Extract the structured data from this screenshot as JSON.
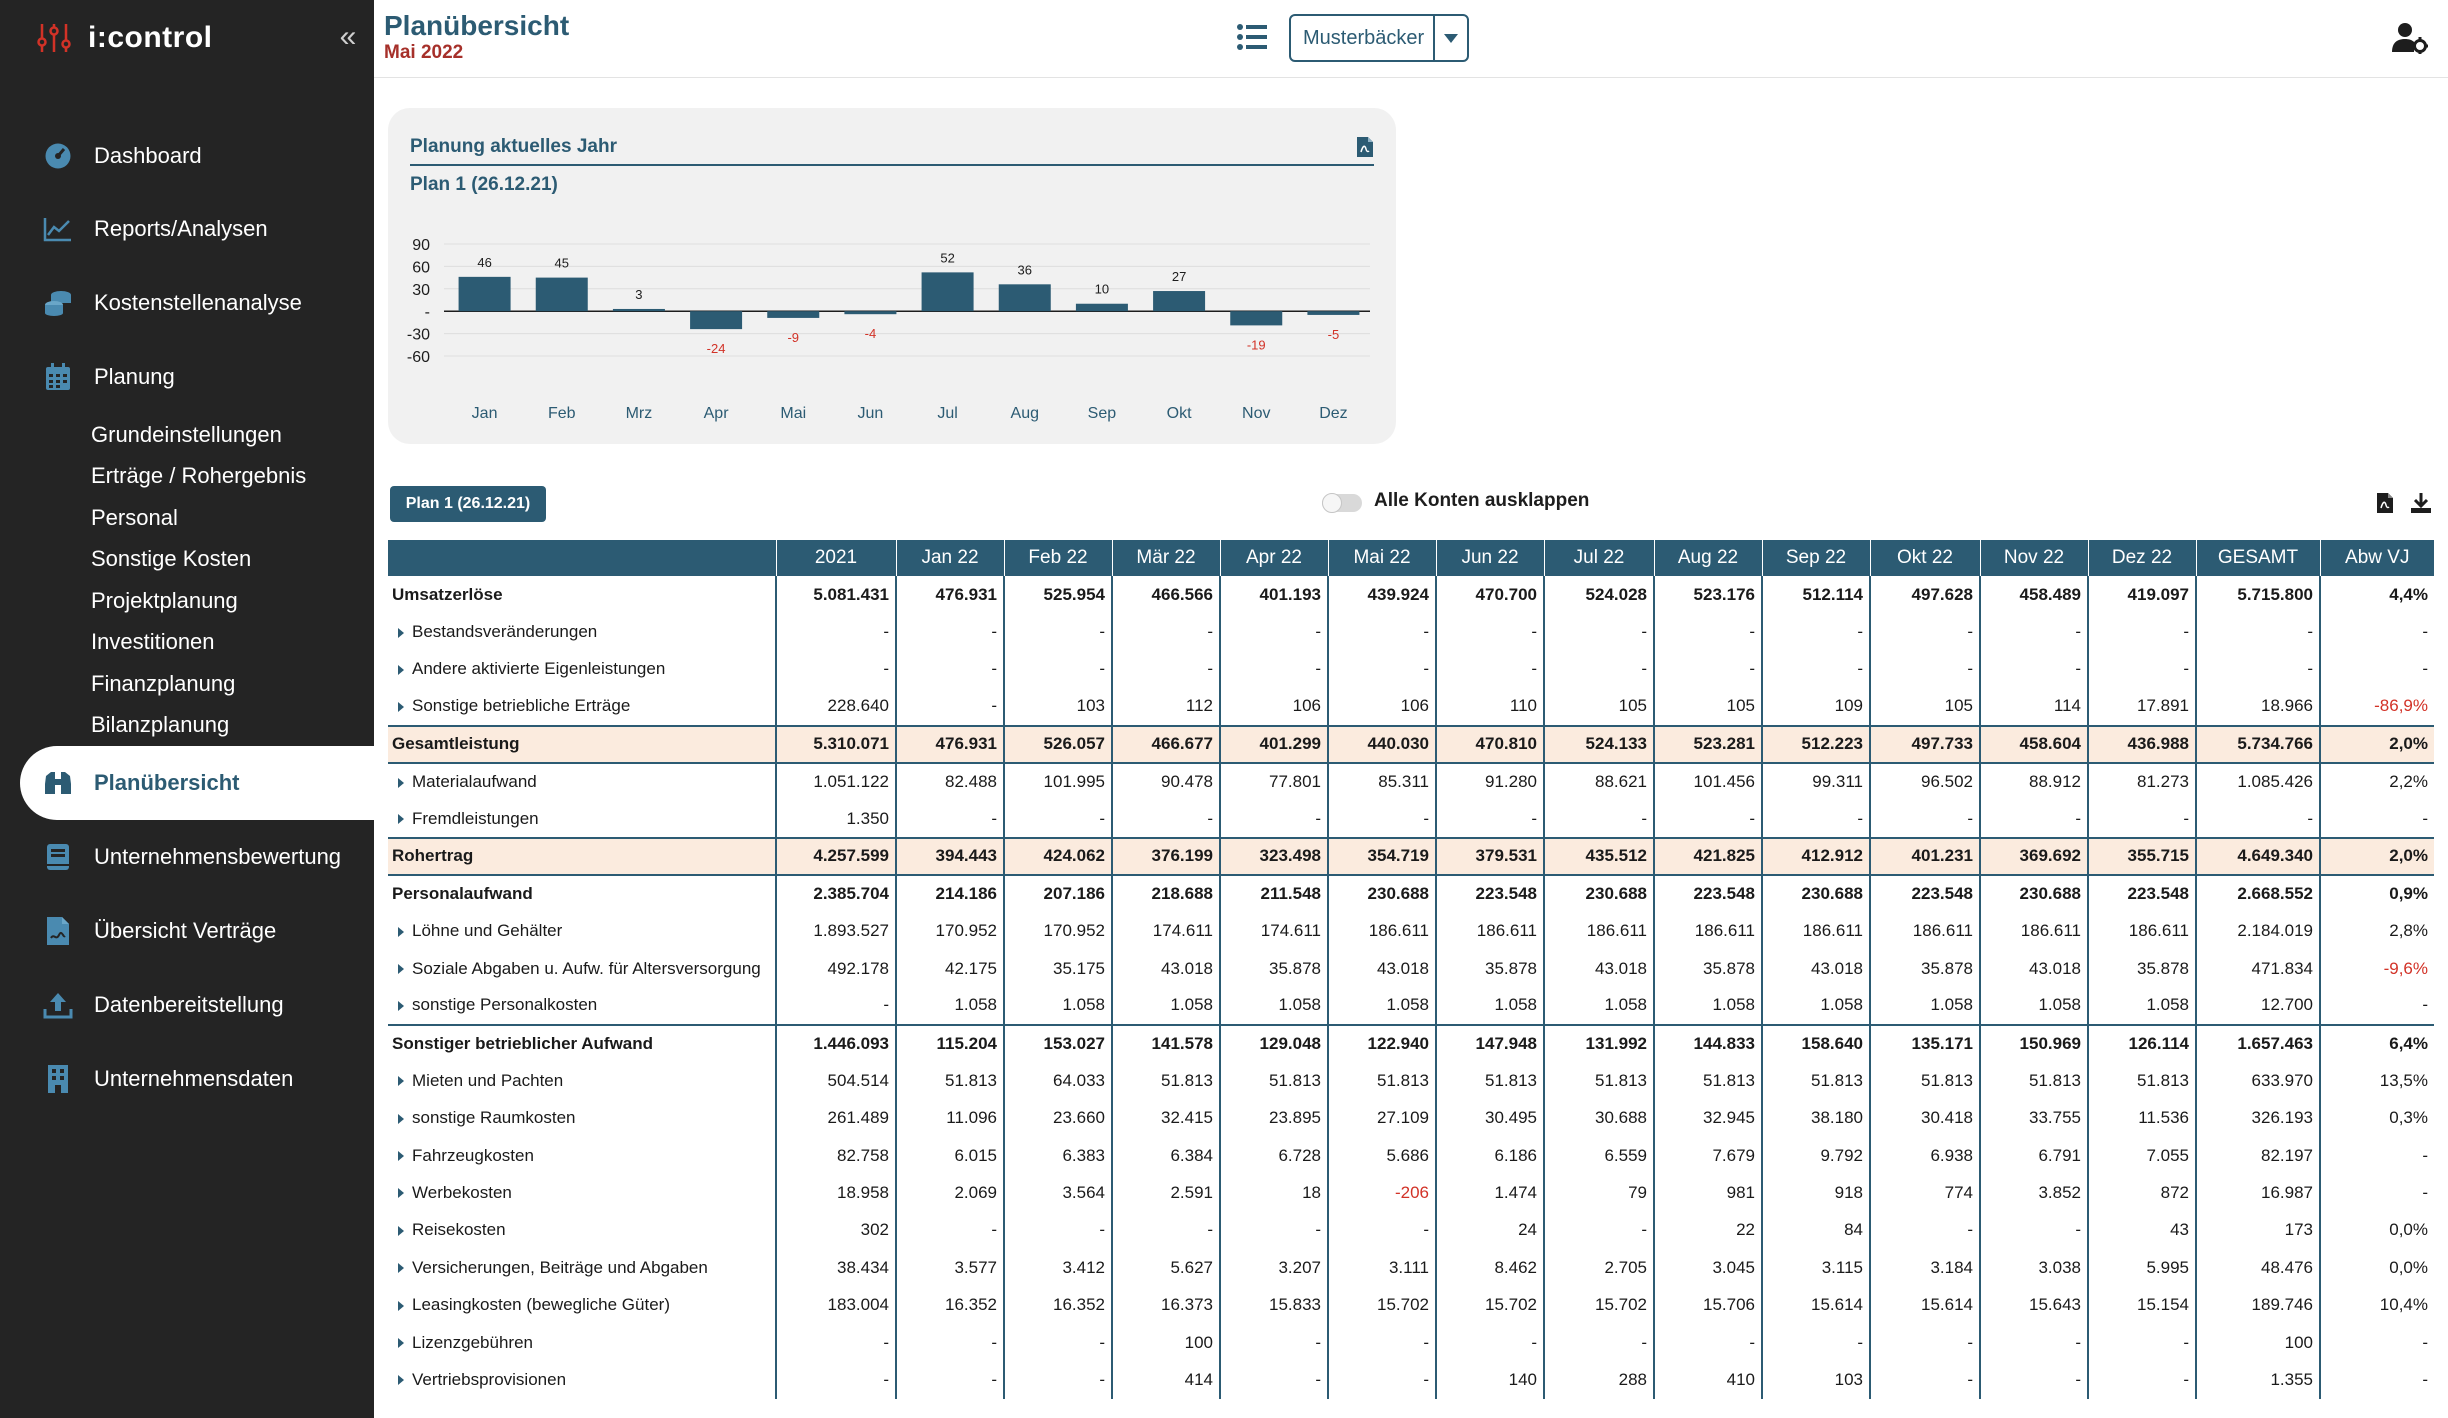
{
  "app": {
    "name": "i:control"
  },
  "sidebar": {
    "items": [
      {
        "label": "Dashboard",
        "icon": "dashboard-gauge-icon"
      },
      {
        "label": "Reports/Analysen",
        "icon": "line-chart-icon"
      },
      {
        "label": "Kostenstellenanalyse",
        "icon": "coins-icon"
      },
      {
        "label": "Planung",
        "icon": "calendar-icon"
      },
      {
        "label": "Planübersicht",
        "icon": "binoculars-icon"
      },
      {
        "label": "Unternehmensbewertung",
        "icon": "book-icon"
      },
      {
        "label": "Übersicht Verträge",
        "icon": "contract-icon"
      },
      {
        "label": "Datenbereitstellung",
        "icon": "upload-icon"
      },
      {
        "label": "Unternehmensdaten",
        "icon": "building-icon"
      }
    ],
    "subitems": [
      "Grundeinstellungen",
      "Erträge / Rohergebnis",
      "Personal",
      "Sonstige Kosten",
      "Projektplanung",
      "Investitionen",
      "Finanzplanung",
      "Bilanzplanung"
    ],
    "active": "Planübersicht"
  },
  "header": {
    "title": "Planübersicht",
    "subtitle": "Mai 2022",
    "company": "Musterbäcker"
  },
  "chart_card": {
    "title": "Planung aktuelles Jahr",
    "plan": "Plan 1 (26.12.21)"
  },
  "chart_data": {
    "type": "bar",
    "categories": [
      "Jan",
      "Feb",
      "Mrz",
      "Apr",
      "Mai",
      "Jun",
      "Jul",
      "Aug",
      "Sep",
      "Okt",
      "Nov",
      "Dez"
    ],
    "values": [
      46,
      45,
      3,
      -24,
      -9,
      -4,
      52,
      36,
      10,
      27,
      -19,
      -5
    ],
    "yticks": [
      "90",
      "60",
      "30",
      "-",
      "-30",
      "-60"
    ],
    "ylim": [
      -60,
      90
    ],
    "bar_color": "#2c5b73",
    "negative_label_color": "#d23227",
    "grid": true
  },
  "table": {
    "plan_badge": "Plan 1 (26.12.21)",
    "expand_label": "Alle Konten ausklappen",
    "columns": [
      "",
      "2021",
      "Jan 22",
      "Feb 22",
      "Mär 22",
      "Apr 22",
      "Mai 22",
      "Jun 22",
      "Jul 22",
      "Aug 22",
      "Sep 22",
      "Okt 22",
      "Nov 22",
      "Dez 22",
      "GESAMT",
      "Abw VJ"
    ],
    "rows": [
      {
        "type": "group",
        "label": "Umsatzerlöse",
        "values": [
          "5.081.431",
          "476.931",
          "525.954",
          "466.566",
          "401.193",
          "439.924",
          "470.700",
          "524.028",
          "523.176",
          "512.114",
          "497.628",
          "458.489",
          "419.097",
          "5.715.800",
          "4,4%"
        ]
      },
      {
        "type": "detail",
        "label": "Bestandsveränderungen",
        "values": [
          "-",
          "-",
          "-",
          "-",
          "-",
          "-",
          "-",
          "-",
          "-",
          "-",
          "-",
          "-",
          "-",
          "-",
          "-"
        ]
      },
      {
        "type": "detail",
        "label": "Andere aktivierte Eigenleistungen",
        "values": [
          "-",
          "-",
          "-",
          "-",
          "-",
          "-",
          "-",
          "-",
          "-",
          "-",
          "-",
          "-",
          "-",
          "-",
          "-"
        ]
      },
      {
        "type": "detail",
        "label": "Sonstige betriebliche Erträge",
        "values": [
          "228.640",
          "-",
          "103",
          "112",
          "106",
          "106",
          "110",
          "105",
          "105",
          "109",
          "105",
          "114",
          "17.891",
          "18.966",
          "-86,9%"
        ]
      },
      {
        "type": "total",
        "label": "Gesamtleistung",
        "values": [
          "5.310.071",
          "476.931",
          "526.057",
          "466.677",
          "401.299",
          "440.030",
          "470.810",
          "524.133",
          "523.281",
          "512.223",
          "497.733",
          "458.604",
          "436.988",
          "5.734.766",
          "2,0%"
        ]
      },
      {
        "type": "detail",
        "label": "Materialaufwand",
        "values": [
          "1.051.122",
          "82.488",
          "101.995",
          "90.478",
          "77.801",
          "85.311",
          "91.280",
          "88.621",
          "101.456",
          "99.311",
          "96.502",
          "88.912",
          "81.273",
          "1.085.426",
          "2,2%"
        ]
      },
      {
        "type": "detail",
        "label": "Fremdleistungen",
        "values": [
          "1.350",
          "-",
          "-",
          "-",
          "-",
          "-",
          "-",
          "-",
          "-",
          "-",
          "-",
          "-",
          "-",
          "-",
          "-"
        ]
      },
      {
        "type": "total",
        "label": "Rohertrag",
        "values": [
          "4.257.599",
          "394.443",
          "424.062",
          "376.199",
          "323.498",
          "354.719",
          "379.531",
          "435.512",
          "421.825",
          "412.912",
          "401.231",
          "369.692",
          "355.715",
          "4.649.340",
          "2,0%"
        ]
      },
      {
        "type": "group",
        "label": "Personalaufwand",
        "values": [
          "2.385.704",
          "214.186",
          "207.186",
          "218.688",
          "211.548",
          "230.688",
          "223.548",
          "230.688",
          "223.548",
          "230.688",
          "223.548",
          "230.688",
          "223.548",
          "2.668.552",
          "0,9%"
        ]
      },
      {
        "type": "detail",
        "label": "Löhne und Gehälter",
        "values": [
          "1.893.527",
          "170.952",
          "170.952",
          "174.611",
          "174.611",
          "186.611",
          "186.611",
          "186.611",
          "186.611",
          "186.611",
          "186.611",
          "186.611",
          "186.611",
          "2.184.019",
          "2,8%"
        ]
      },
      {
        "type": "detail",
        "label": "Soziale Abgaben u. Aufw. für Altersversorgung",
        "values": [
          "492.178",
          "42.175",
          "35.175",
          "43.018",
          "35.878",
          "43.018",
          "35.878",
          "43.018",
          "35.878",
          "43.018",
          "35.878",
          "43.018",
          "35.878",
          "471.834",
          "-9,6%"
        ]
      },
      {
        "type": "detail",
        "label": "sonstige Personalkosten",
        "values": [
          "-",
          "1.058",
          "1.058",
          "1.058",
          "1.058",
          "1.058",
          "1.058",
          "1.058",
          "1.058",
          "1.058",
          "1.058",
          "1.058",
          "1.058",
          "12.700",
          "-"
        ]
      },
      {
        "type": "group",
        "label": "Sonstiger betrieblicher Aufwand",
        "values": [
          "1.446.093",
          "115.204",
          "153.027",
          "141.578",
          "129.048",
          "122.940",
          "147.948",
          "131.992",
          "144.833",
          "158.640",
          "135.171",
          "150.969",
          "126.114",
          "1.657.463",
          "6,4%"
        ]
      },
      {
        "type": "detail",
        "label": "Mieten und Pachten",
        "values": [
          "504.514",
          "51.813",
          "64.033",
          "51.813",
          "51.813",
          "51.813",
          "51.813",
          "51.813",
          "51.813",
          "51.813",
          "51.813",
          "51.813",
          "51.813",
          "633.970",
          "13,5%"
        ]
      },
      {
        "type": "detail",
        "label": "sonstige Raumkosten",
        "values": [
          "261.489",
          "11.096",
          "23.660",
          "32.415",
          "23.895",
          "27.109",
          "30.495",
          "30.688",
          "32.945",
          "38.180",
          "30.418",
          "33.755",
          "11.536",
          "326.193",
          "0,3%"
        ]
      },
      {
        "type": "detail",
        "label": "Fahrzeugkosten",
        "values": [
          "82.758",
          "6.015",
          "6.383",
          "6.384",
          "6.728",
          "5.686",
          "6.186",
          "6.559",
          "7.679",
          "9.792",
          "6.938",
          "6.791",
          "7.055",
          "82.197",
          "-"
        ]
      },
      {
        "type": "detail",
        "label": "Werbekosten",
        "values": [
          "18.958",
          "2.069",
          "3.564",
          "2.591",
          "18",
          "-206",
          "1.474",
          "79",
          "981",
          "918",
          "774",
          "3.852",
          "872",
          "16.987",
          "-"
        ]
      },
      {
        "type": "detail",
        "label": "Reisekosten",
        "values": [
          "302",
          "-",
          "-",
          "-",
          "-",
          "-",
          "24",
          "-",
          "22",
          "84",
          "-",
          "-",
          "43",
          "173",
          "0,0%"
        ]
      },
      {
        "type": "detail",
        "label": "Versicherungen, Beiträge und Abgaben",
        "values": [
          "38.434",
          "3.577",
          "3.412",
          "5.627",
          "3.207",
          "3.111",
          "8.462",
          "2.705",
          "3.045",
          "3.115",
          "3.184",
          "3.038",
          "5.995",
          "48.476",
          "0,0%"
        ]
      },
      {
        "type": "detail",
        "label": "Leasingkosten (bewegliche Güter)",
        "values": [
          "183.004",
          "16.352",
          "16.352",
          "16.373",
          "15.833",
          "15.702",
          "15.702",
          "15.702",
          "15.706",
          "15.614",
          "15.614",
          "15.643",
          "15.154",
          "189.746",
          "10,4%"
        ]
      },
      {
        "type": "detail",
        "label": "Lizenzgebühren",
        "values": [
          "-",
          "-",
          "-",
          "100",
          "-",
          "-",
          "-",
          "-",
          "-",
          "-",
          "-",
          "-",
          "-",
          "100",
          "-"
        ]
      },
      {
        "type": "detail",
        "label": "Vertriebsprovisionen",
        "values": [
          "-",
          "-",
          "-",
          "414",
          "-",
          "-",
          "140",
          "288",
          "410",
          "103",
          "-",
          "-",
          "-",
          "1.355",
          "-"
        ]
      }
    ],
    "negative_color": "#d23227"
  }
}
